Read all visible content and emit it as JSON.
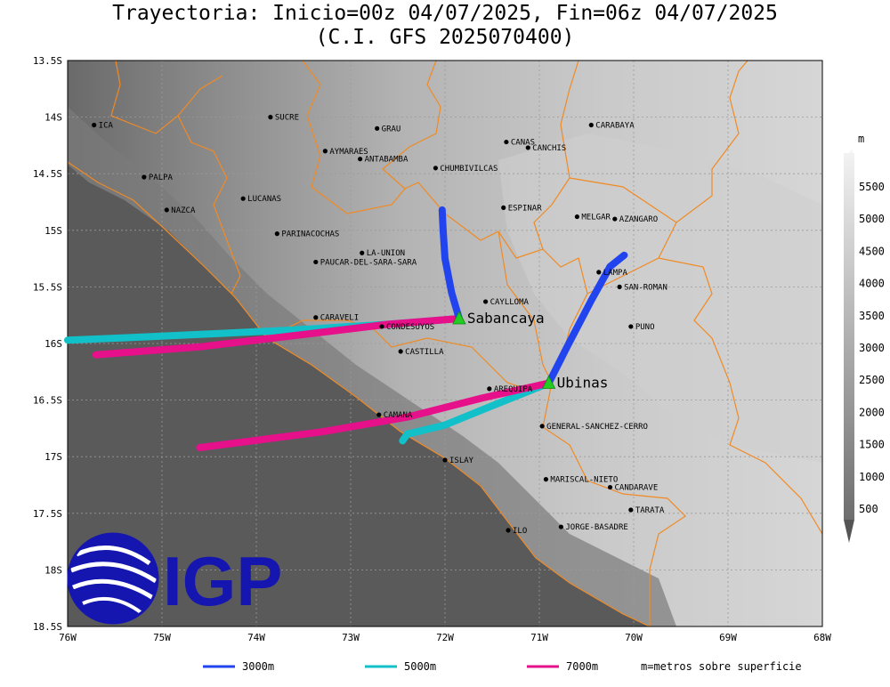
{
  "title": {
    "line1": "Trayectoria: Inicio=00z 04/07/2025, Fin=06z 04/07/2025",
    "line2": "(C.I. GFS 2025070400)"
  },
  "axes": {
    "lon_ticks": [
      {
        "value": -76,
        "label": "76W"
      },
      {
        "value": -75,
        "label": "75W"
      },
      {
        "value": -74,
        "label": "74W"
      },
      {
        "value": -73,
        "label": "73W"
      },
      {
        "value": -72,
        "label": "72W"
      },
      {
        "value": -71,
        "label": "71W"
      },
      {
        "value": -70,
        "label": "70W"
      },
      {
        "value": -69,
        "label": "69W"
      },
      {
        "value": -68,
        "label": "68W"
      }
    ],
    "lat_ticks": [
      {
        "value": -13.5,
        "label": "13.5S"
      },
      {
        "value": -14,
        "label": "14S"
      },
      {
        "value": -14.5,
        "label": "14.5S"
      },
      {
        "value": -15,
        "label": "15S"
      },
      {
        "value": -15.5,
        "label": "15.5S"
      },
      {
        "value": -16,
        "label": "16S"
      },
      {
        "value": -16.5,
        "label": "16.5S"
      },
      {
        "value": -17,
        "label": "17S"
      },
      {
        "value": -17.5,
        "label": "17.5S"
      },
      {
        "value": -18,
        "label": "18S"
      },
      {
        "value": -18.5,
        "label": "18.5S"
      }
    ]
  },
  "cities": [
    {
      "name": "ICA",
      "lon": -75.72,
      "lat": -14.07
    },
    {
      "name": "SUCRE",
      "lon": -73.85,
      "lat": -14.0
    },
    {
      "name": "GRAU",
      "lon": -72.72,
      "lat": -14.1
    },
    {
      "name": "AYMARAES",
      "lon": -73.27,
      "lat": -14.3
    },
    {
      "name": "ANTABAMBA",
      "lon": -72.9,
      "lat": -14.37
    },
    {
      "name": "CANAS",
      "lon": -71.35,
      "lat": -14.22
    },
    {
      "name": "CANCHIS",
      "lon": -71.12,
      "lat": -14.27
    },
    {
      "name": "CARABAYA",
      "lon": -70.45,
      "lat": -14.07
    },
    {
      "name": "CHUMBIVILCAS",
      "lon": -72.1,
      "lat": -14.45
    },
    {
      "name": "PALPA",
      "lon": -75.19,
      "lat": -14.53
    },
    {
      "name": "LUCANAS",
      "lon": -74.14,
      "lat": -14.72
    },
    {
      "name": "NAZCA",
      "lon": -74.95,
      "lat": -14.82
    },
    {
      "name": "ESPINAR",
      "lon": -71.38,
      "lat": -14.8
    },
    {
      "name": "MELGAR",
      "lon": -70.6,
      "lat": -14.88
    },
    {
      "name": "AZANGARO",
      "lon": -70.2,
      "lat": -14.9
    },
    {
      "name": "PARINACOCHAS",
      "lon": -73.78,
      "lat": -15.03
    },
    {
      "name": "LA-UNION",
      "lon": -72.88,
      "lat": -15.2
    },
    {
      "name": "PAUCAR-DEL-SARA-SARA",
      "lon": -73.37,
      "lat": -15.28
    },
    {
      "name": "LAMPA",
      "lon": -70.37,
      "lat": -15.37
    },
    {
      "name": "SAN-ROMAN",
      "lon": -70.15,
      "lat": -15.5
    },
    {
      "name": "CAYLLOMA",
      "lon": -71.57,
      "lat": -15.63
    },
    {
      "name": "CARAVELI",
      "lon": -73.37,
      "lat": -15.77
    },
    {
      "name": "CONDESUYOS",
      "lon": -72.67,
      "lat": -15.85
    },
    {
      "name": "PUNO",
      "lon": -70.03,
      "lat": -15.85
    },
    {
      "name": "CASTILLA",
      "lon": -72.47,
      "lat": -16.07
    },
    {
      "name": "AREQUIPA",
      "lon": -71.53,
      "lat": -16.4
    },
    {
      "name": "CAMANA",
      "lon": -72.7,
      "lat": -16.63
    },
    {
      "name": "GENERAL-SANCHEZ-CERRO",
      "lon": -70.97,
      "lat": -16.73
    },
    {
      "name": "ISLAY",
      "lon": -72.0,
      "lat": -17.03
    },
    {
      "name": "MARISCAL-NIETO",
      "lon": -70.93,
      "lat": -17.2
    },
    {
      "name": "CANDARAVE",
      "lon": -70.25,
      "lat": -17.27
    },
    {
      "name": "TARATA",
      "lon": -70.03,
      "lat": -17.47
    },
    {
      "name": "ILO",
      "lon": -71.33,
      "lat": -17.65
    },
    {
      "name": "JORGE-BASADRE",
      "lon": -70.77,
      "lat": -17.62
    }
  ],
  "volcanoes": [
    {
      "name": "Sabancaya",
      "lon": -71.85,
      "lat": -15.78
    },
    {
      "name": "Ubinas",
      "lon": -70.9,
      "lat": -16.35
    }
  ],
  "trajectories": [
    {
      "volcano": "Sabancaya",
      "level": "3000m",
      "color": "#2244ee",
      "points": [
        [
          -71.85,
          -15.78
        ],
        [
          -71.93,
          -15.55
        ],
        [
          -72.0,
          -15.25
        ],
        [
          -72.02,
          -15.0
        ],
        [
          -72.03,
          -14.82
        ]
      ]
    },
    {
      "volcano": "Sabancaya",
      "level": "5000m",
      "color": "#11c0c8",
      "points": [
        [
          -71.85,
          -15.78
        ],
        [
          -72.6,
          -15.83
        ],
        [
          -73.6,
          -15.88
        ],
        [
          -74.6,
          -15.92
        ],
        [
          -75.4,
          -15.95
        ],
        [
          -76.0,
          -15.97
        ]
      ]
    },
    {
      "volcano": "Sabancaya",
      "level": "7000m",
      "color": "#e6108a",
      "points": [
        [
          -71.85,
          -15.78
        ],
        [
          -72.6,
          -15.83
        ],
        [
          -73.6,
          -15.93
        ],
        [
          -74.6,
          -16.03
        ],
        [
          -75.7,
          -16.1
        ]
      ]
    },
    {
      "volcano": "Ubinas",
      "level": "3000m",
      "color": "#2244ee",
      "points": [
        [
          -70.9,
          -16.35
        ],
        [
          -70.7,
          -16.02
        ],
        [
          -70.45,
          -15.62
        ],
        [
          -70.25,
          -15.32
        ],
        [
          -70.1,
          -15.22
        ]
      ]
    },
    {
      "volcano": "Ubinas",
      "level": "5000m",
      "color": "#11c0c8",
      "points": [
        [
          -70.9,
          -16.35
        ],
        [
          -71.5,
          -16.55
        ],
        [
          -72.0,
          -16.72
        ],
        [
          -72.4,
          -16.8
        ],
        [
          -72.45,
          -16.86
        ]
      ]
    },
    {
      "volcano": "Ubinas",
      "level": "7000m",
      "color": "#e6108a",
      "points": [
        [
          -70.9,
          -16.35
        ],
        [
          -71.6,
          -16.48
        ],
        [
          -72.4,
          -16.65
        ],
        [
          -73.3,
          -16.78
        ],
        [
          -74.6,
          -16.92
        ]
      ]
    }
  ],
  "colorbar": {
    "unit": "m",
    "labels": [
      "500",
      "1000",
      "1500",
      "2000",
      "2500",
      "3000",
      "3500",
      "4000",
      "4500",
      "5000",
      "5500"
    ]
  },
  "legend": [
    {
      "label": "3000m",
      "color": "#2244ee"
    },
    {
      "label": "5000m",
      "color": "#11c0c8"
    },
    {
      "label": "7000m",
      "color": "#e6108a"
    }
  ],
  "legend_note": "m=metros sobre superficie",
  "logo": {
    "text": "IGP",
    "color": "#1515b0"
  }
}
